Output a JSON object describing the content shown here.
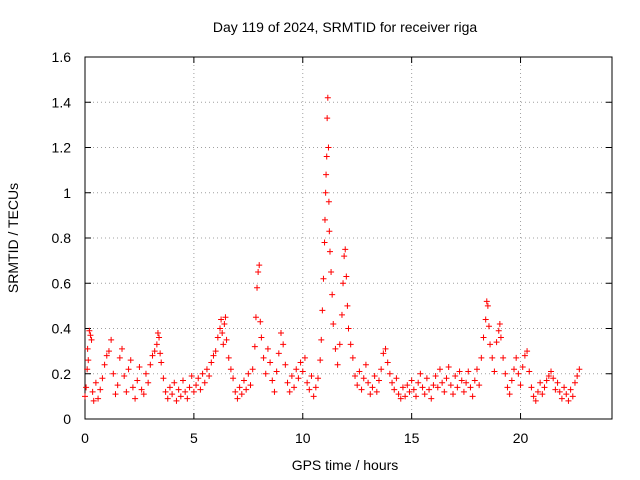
{
  "chart_data": {
    "type": "scatter",
    "title": "Day 119 of 2024, SRMTID for receiver riga",
    "xlabel": "GPS time / hours",
    "ylabel": "SRMTID / TECUs",
    "xlim": [
      0,
      24.2
    ],
    "ylim": [
      0,
      1.6
    ],
    "xticks": [
      0,
      5,
      10,
      15,
      20
    ],
    "xtick_labels": [
      "0",
      "5",
      "10",
      "15",
      "20"
    ],
    "yticks": [
      0,
      0.2,
      0.4,
      0.6,
      0.8,
      1.0,
      1.2,
      1.4,
      1.6
    ],
    "ytick_labels": [
      "0",
      "0.2",
      "0.4",
      "0.6",
      "0.8",
      "1",
      "1.2",
      "1.4",
      "1.6"
    ],
    "grid": true,
    "marker": "+",
    "color": "#ff0000",
    "series": [
      {
        "name": "SRMTID",
        "points": [
          [
            0.0,
            0.1
          ],
          [
            0.05,
            0.14
          ],
          [
            0.1,
            0.22
          ],
          [
            0.12,
            0.31
          ],
          [
            0.15,
            0.26
          ],
          [
            0.2,
            0.39
          ],
          [
            0.25,
            0.37
          ],
          [
            0.3,
            0.35
          ],
          [
            0.35,
            0.12
          ],
          [
            0.4,
            0.08
          ],
          [
            0.5,
            0.16
          ],
          [
            0.6,
            0.09
          ],
          [
            0.7,
            0.13
          ],
          [
            0.8,
            0.18
          ],
          [
            0.9,
            0.24
          ],
          [
            1.0,
            0.28
          ],
          [
            1.1,
            0.3
          ],
          [
            1.2,
            0.35
          ],
          [
            1.3,
            0.2
          ],
          [
            1.4,
            0.11
          ],
          [
            1.5,
            0.15
          ],
          [
            1.6,
            0.27
          ],
          [
            1.7,
            0.31
          ],
          [
            1.8,
            0.19
          ],
          [
            1.9,
            0.12
          ],
          [
            2.0,
            0.22
          ],
          [
            2.1,
            0.26
          ],
          [
            2.2,
            0.14
          ],
          [
            2.3,
            0.09
          ],
          [
            2.4,
            0.17
          ],
          [
            2.5,
            0.23
          ],
          [
            2.6,
            0.13
          ],
          [
            2.7,
            0.11
          ],
          [
            2.8,
            0.2
          ],
          [
            2.9,
            0.16
          ],
          [
            3.0,
            0.24
          ],
          [
            3.1,
            0.28
          ],
          [
            3.2,
            0.3
          ],
          [
            3.3,
            0.33
          ],
          [
            3.35,
            0.38
          ],
          [
            3.4,
            0.36
          ],
          [
            3.45,
            0.29
          ],
          [
            3.5,
            0.25
          ],
          [
            3.6,
            0.18
          ],
          [
            3.7,
            0.12
          ],
          [
            3.8,
            0.09
          ],
          [
            3.9,
            0.14
          ],
          [
            4.0,
            0.11
          ],
          [
            4.1,
            0.16
          ],
          [
            4.2,
            0.08
          ],
          [
            4.3,
            0.13
          ],
          [
            4.4,
            0.1
          ],
          [
            4.5,
            0.17
          ],
          [
            4.6,
            0.12
          ],
          [
            4.7,
            0.09
          ],
          [
            4.8,
            0.14
          ],
          [
            4.9,
            0.19
          ],
          [
            5.0,
            0.12
          ],
          [
            5.1,
            0.15
          ],
          [
            5.2,
            0.18
          ],
          [
            5.3,
            0.13
          ],
          [
            5.4,
            0.2
          ],
          [
            5.5,
            0.16
          ],
          [
            5.6,
            0.22
          ],
          [
            5.7,
            0.19
          ],
          [
            5.8,
            0.25
          ],
          [
            5.9,
            0.28
          ],
          [
            6.0,
            0.3
          ],
          [
            6.1,
            0.36
          ],
          [
            6.2,
            0.4
          ],
          [
            6.25,
            0.44
          ],
          [
            6.3,
            0.38
          ],
          [
            6.35,
            0.33
          ],
          [
            6.4,
            0.42
          ],
          [
            6.45,
            0.45
          ],
          [
            6.5,
            0.35
          ],
          [
            6.6,
            0.27
          ],
          [
            6.7,
            0.22
          ],
          [
            6.8,
            0.18
          ],
          [
            6.9,
            0.12
          ],
          [
            7.0,
            0.09
          ],
          [
            7.1,
            0.14
          ],
          [
            7.2,
            0.11
          ],
          [
            7.3,
            0.17
          ],
          [
            7.4,
            0.13
          ],
          [
            7.5,
            0.2
          ],
          [
            7.6,
            0.15
          ],
          [
            7.7,
            0.22
          ],
          [
            7.8,
            0.32
          ],
          [
            7.85,
            0.45
          ],
          [
            7.9,
            0.58
          ],
          [
            7.95,
            0.65
          ],
          [
            8.0,
            0.68
          ],
          [
            8.05,
            0.43
          ],
          [
            8.1,
            0.36
          ],
          [
            8.2,
            0.27
          ],
          [
            8.3,
            0.2
          ],
          [
            8.4,
            0.31
          ],
          [
            8.5,
            0.25
          ],
          [
            8.6,
            0.17
          ],
          [
            8.7,
            0.12
          ],
          [
            8.8,
            0.21
          ],
          [
            8.9,
            0.29
          ],
          [
            9.0,
            0.38
          ],
          [
            9.1,
            0.33
          ],
          [
            9.2,
            0.24
          ],
          [
            9.3,
            0.16
          ],
          [
            9.4,
            0.12
          ],
          [
            9.5,
            0.19
          ],
          [
            9.6,
            0.14
          ],
          [
            9.7,
            0.22
          ],
          [
            9.8,
            0.18
          ],
          [
            9.9,
            0.25
          ],
          [
            10.0,
            0.21
          ],
          [
            10.1,
            0.27
          ],
          [
            10.2,
            0.16
          ],
          [
            10.3,
            0.13
          ],
          [
            10.4,
            0.19
          ],
          [
            10.5,
            0.1
          ],
          [
            10.6,
            0.14
          ],
          [
            10.7,
            0.18
          ],
          [
            10.8,
            0.26
          ],
          [
            10.85,
            0.35
          ],
          [
            10.9,
            0.48
          ],
          [
            10.95,
            0.62
          ],
          [
            11.0,
            0.78
          ],
          [
            11.02,
            0.88
          ],
          [
            11.05,
            1.0
          ],
          [
            11.07,
            1.08
          ],
          [
            11.1,
            1.16
          ],
          [
            11.12,
            1.33
          ],
          [
            11.15,
            1.42
          ],
          [
            11.18,
            1.2
          ],
          [
            11.2,
            0.96
          ],
          [
            11.22,
            0.83
          ],
          [
            11.25,
            0.74
          ],
          [
            11.3,
            0.65
          ],
          [
            11.35,
            0.55
          ],
          [
            11.4,
            0.42
          ],
          [
            11.5,
            0.31
          ],
          [
            11.6,
            0.24
          ],
          [
            11.7,
            0.33
          ],
          [
            11.8,
            0.46
          ],
          [
            11.85,
            0.6
          ],
          [
            11.9,
            0.72
          ],
          [
            11.95,
            0.75
          ],
          [
            12.0,
            0.63
          ],
          [
            12.05,
            0.5
          ],
          [
            12.1,
            0.4
          ],
          [
            12.2,
            0.33
          ],
          [
            12.3,
            0.27
          ],
          [
            12.4,
            0.19
          ],
          [
            12.5,
            0.15
          ],
          [
            12.6,
            0.21
          ],
          [
            12.7,
            0.13
          ],
          [
            12.8,
            0.18
          ],
          [
            12.9,
            0.24
          ],
          [
            13.0,
            0.16
          ],
          [
            13.1,
            0.11
          ],
          [
            13.2,
            0.14
          ],
          [
            13.3,
            0.19
          ],
          [
            13.4,
            0.12
          ],
          [
            13.5,
            0.17
          ],
          [
            13.6,
            0.22
          ],
          [
            13.7,
            0.29
          ],
          [
            13.8,
            0.31
          ],
          [
            13.9,
            0.25
          ],
          [
            14.0,
            0.2
          ],
          [
            14.1,
            0.16
          ],
          [
            14.2,
            0.13
          ],
          [
            14.3,
            0.18
          ],
          [
            14.4,
            0.11
          ],
          [
            14.5,
            0.09
          ],
          [
            14.6,
            0.14
          ],
          [
            14.7,
            0.1
          ],
          [
            14.8,
            0.15
          ],
          [
            14.9,
            0.12
          ],
          [
            15.0,
            0.17
          ],
          [
            15.1,
            0.13
          ],
          [
            15.2,
            0.1
          ],
          [
            15.3,
            0.16
          ],
          [
            15.4,
            0.2
          ],
          [
            15.5,
            0.14
          ],
          [
            15.6,
            0.11
          ],
          [
            15.7,
            0.18
          ],
          [
            15.8,
            0.13
          ],
          [
            15.9,
            0.09
          ],
          [
            16.0,
            0.15
          ],
          [
            16.1,
            0.19
          ],
          [
            16.2,
            0.14
          ],
          [
            16.3,
            0.22
          ],
          [
            16.4,
            0.16
          ],
          [
            16.5,
            0.12
          ],
          [
            16.6,
            0.18
          ],
          [
            16.7,
            0.23
          ],
          [
            16.8,
            0.15
          ],
          [
            16.9,
            0.11
          ],
          [
            17.0,
            0.19
          ],
          [
            17.1,
            0.14
          ],
          [
            17.2,
            0.21
          ],
          [
            17.3,
            0.17
          ],
          [
            17.4,
            0.12
          ],
          [
            17.5,
            0.16
          ],
          [
            17.6,
            0.21
          ],
          [
            17.7,
            0.14
          ],
          [
            17.8,
            0.1
          ],
          [
            17.9,
            0.17
          ],
          [
            18.0,
            0.22
          ],
          [
            18.1,
            0.15
          ],
          [
            18.2,
            0.27
          ],
          [
            18.3,
            0.36
          ],
          [
            18.4,
            0.44
          ],
          [
            18.45,
            0.52
          ],
          [
            18.5,
            0.5
          ],
          [
            18.55,
            0.41
          ],
          [
            18.6,
            0.33
          ],
          [
            18.7,
            0.27
          ],
          [
            18.8,
            0.21
          ],
          [
            18.9,
            0.34
          ],
          [
            19.0,
            0.39
          ],
          [
            19.05,
            0.42
          ],
          [
            19.1,
            0.36
          ],
          [
            19.2,
            0.27
          ],
          [
            19.3,
            0.2
          ],
          [
            19.4,
            0.14
          ],
          [
            19.5,
            0.11
          ],
          [
            19.6,
            0.17
          ],
          [
            19.7,
            0.22
          ],
          [
            19.8,
            0.27
          ],
          [
            19.9,
            0.2
          ],
          [
            20.0,
            0.15
          ],
          [
            20.1,
            0.23
          ],
          [
            20.2,
            0.28
          ],
          [
            20.3,
            0.3
          ],
          [
            20.4,
            0.21
          ],
          [
            20.5,
            0.14
          ],
          [
            20.6,
            0.1
          ],
          [
            20.7,
            0.08
          ],
          [
            20.8,
            0.12
          ],
          [
            20.9,
            0.16
          ],
          [
            21.0,
            0.11
          ],
          [
            21.1,
            0.14
          ],
          [
            21.2,
            0.17
          ],
          [
            21.3,
            0.19
          ],
          [
            21.4,
            0.21
          ],
          [
            21.5,
            0.18
          ],
          [
            21.6,
            0.13
          ],
          [
            21.7,
            0.16
          ],
          [
            21.8,
            0.12
          ],
          [
            21.9,
            0.09
          ],
          [
            22.0,
            0.14
          ],
          [
            22.1,
            0.11
          ],
          [
            22.2,
            0.08
          ],
          [
            22.3,
            0.13
          ],
          [
            22.4,
            0.1
          ],
          [
            22.5,
            0.16
          ],
          [
            22.6,
            0.19
          ],
          [
            22.7,
            0.22
          ]
        ]
      }
    ]
  }
}
